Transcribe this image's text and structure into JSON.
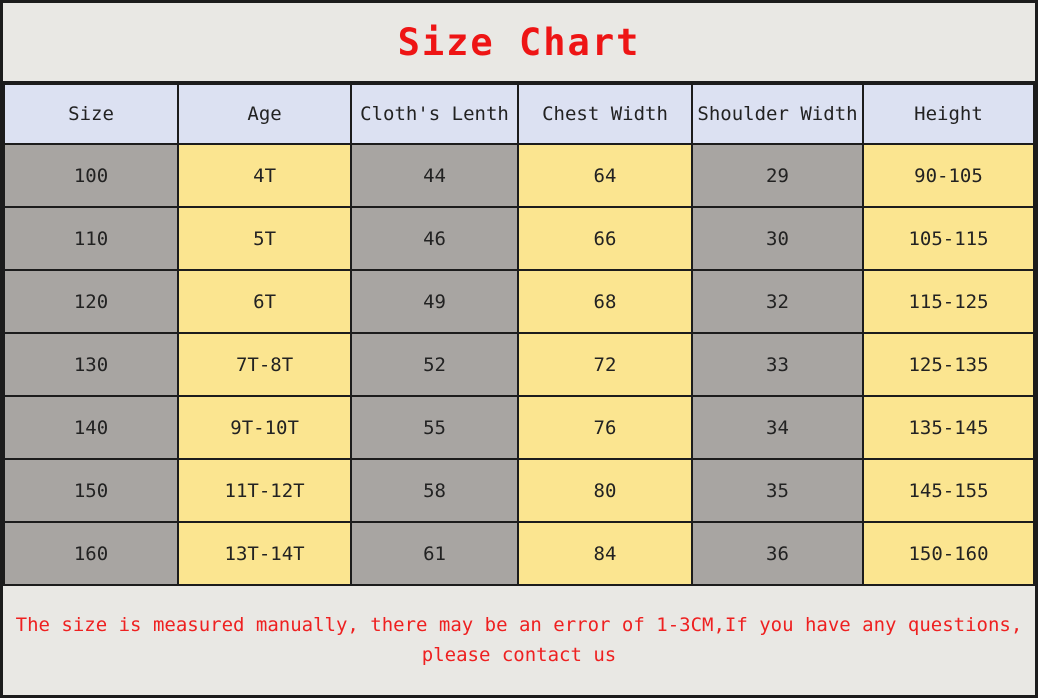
{
  "title": "Size Chart",
  "chart_data": {
    "type": "table",
    "title": "Size Chart",
    "columns": [
      "Size",
      "Age",
      "Cloth's Lenth",
      "Chest Width",
      "Shoulder Width",
      "Height"
    ],
    "rows": [
      [
        "100",
        "4T",
        "44",
        "64",
        "29",
        "90-105"
      ],
      [
        "110",
        "5T",
        "46",
        "66",
        "30",
        "105-115"
      ],
      [
        "120",
        "6T",
        "49",
        "68",
        "32",
        "115-125"
      ],
      [
        "130",
        "7T-8T",
        "52",
        "72",
        "33",
        "125-135"
      ],
      [
        "140",
        "9T-10T",
        "55",
        "76",
        "34",
        "135-145"
      ],
      [
        "150",
        "11T-12T",
        "58",
        "80",
        "35",
        "145-155"
      ],
      [
        "160",
        "13T-14T",
        "61",
        "84",
        "36",
        "150-160"
      ]
    ],
    "layout_hints": {
      "column_fill_pattern": [
        "gray",
        "yellow",
        "gray",
        "yellow",
        "gray",
        "yellow"
      ],
      "header_fill": "lavender"
    }
  },
  "footer": {
    "line1": "The size is measured manually, there may be an error of 1-3CM,If you have any questions,",
    "line2": "please contact us"
  },
  "colors": {
    "title_red": "#ee1515",
    "footer_red": "#ee2020",
    "header_bg": "#dce1f2",
    "cell_gray": "#a8a5a2",
    "cell_yellow": "#fbe590",
    "band_bg": "#e9e8e4",
    "border": "#1c1c1c"
  }
}
